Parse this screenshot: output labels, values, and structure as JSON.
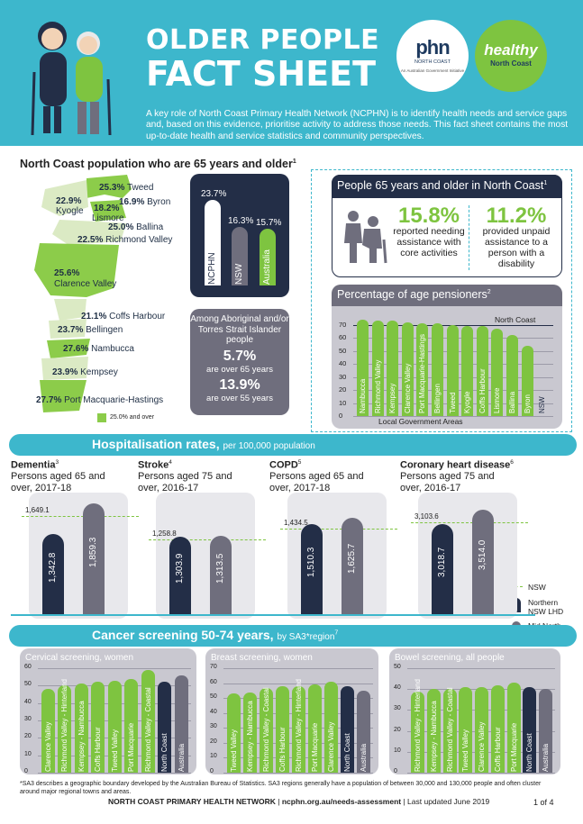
{
  "header": {
    "title_line1": "OLDER PEOPLE",
    "title_line2": "FACT SHEET",
    "intro": "A key role of North Coast Primary Health Network (NCPHN) is to identify health needs and service gaps and, based on this evidence, prioritise activity to address those needs. This fact sheet contains the most up-to-date health and service statistics and community perspectives.",
    "logo_phn": "phn",
    "logo_phn_sub": "NORTH COAST",
    "logo_phn_note": "An Australian Government Initiative",
    "logo_healthy": "healthy",
    "logo_healthy_sub": "North Coast"
  },
  "population": {
    "title": "North Coast population who are 65 years and older",
    "title_sup": "1",
    "regions": [
      {
        "value": "25.3%",
        "name": "Tweed",
        "highlight": true
      },
      {
        "value": "22.9%",
        "name": "Kyogle",
        "highlight": false
      },
      {
        "value": "16.9%",
        "name": "Byron",
        "highlight": false
      },
      {
        "value": "18.2%",
        "name": "Lismore",
        "highlight": false
      },
      {
        "value": "25.0%",
        "name": "Ballina",
        "highlight": true
      },
      {
        "value": "22.5%",
        "name": "Richmond Valley",
        "highlight": false
      },
      {
        "value": "25.6%",
        "name": "Clarence Valley",
        "highlight": true
      },
      {
        "value": "21.1%",
        "name": "Coffs Harbour",
        "highlight": false
      },
      {
        "value": "23.7%",
        "name": "Bellingen",
        "highlight": false
      },
      {
        "value": "27.6%",
        "name": "Nambucca",
        "highlight": true
      },
      {
        "value": "23.9%",
        "name": "Kempsey",
        "highlight": false
      },
      {
        "value": "27.7%",
        "name": "Port Macquarie-Hastings",
        "highlight": true
      }
    ],
    "legend": "25.0% and over",
    "legend_color": "#8ccc4a"
  },
  "comparison": {
    "bars": [
      {
        "label": "NCPHN",
        "value": 23.7,
        "display": "23.7%",
        "color": "#ffffff",
        "label_color": "#232e47"
      },
      {
        "label": "NSW",
        "value": 16.3,
        "display": "16.3%",
        "color": "#6f6e7d",
        "label_color": "#ffffff"
      },
      {
        "label": "Australia",
        "value": 15.7,
        "display": "15.7%",
        "color": "#7ec440",
        "label_color": "#ffffff"
      }
    ]
  },
  "aboriginal": {
    "heading": "Among Aboriginal and/or Torres Strait Islander people",
    "v1": "5.7%",
    "s1": "are over 65 years",
    "v2": "13.9%",
    "s2": "are over 55 years"
  },
  "people65": {
    "title": "People 65 years and older in North Coast",
    "title_sup": "1",
    "stat1_value": "15.8%",
    "stat1_text": "reported needing assistance with core activities",
    "stat2_value": "11.2%",
    "stat2_text": "provided unpaid assistance to a person with a disability"
  },
  "age_pensioners": {
    "title": "Percentage of age pensioners",
    "title_sup": "2",
    "xlabel": "Local Government Areas",
    "reference_label": "North Coast"
  },
  "hospitalisation": {
    "band_title": "Hospitalisation rates,",
    "band_sub": "per 100,000 population",
    "panels": [
      {
        "name": "Dementia",
        "sup": "3",
        "desc": "Persons aged 65 and over, 2017-18"
      },
      {
        "name": "Stroke",
        "sup": "4",
        "desc": "Persons aged 75 and over, 2016-17"
      },
      {
        "name": "COPD",
        "sup": "5",
        "desc": "Persons aged 65 and over, 2017-18"
      },
      {
        "name": "Coronary heart disease",
        "sup": "6",
        "desc": "Persons aged 75 and over, 2016-17"
      }
    ],
    "legend": {
      "nsw": "NSW",
      "nnsw": "Northern NSW LHD",
      "mnc": "Mid North Coast LHD"
    }
  },
  "cancer": {
    "band_title": "Cancer screening 50-74 years,",
    "band_sub": "by SA3*region",
    "band_sup": "7"
  },
  "chart_data": [
    {
      "type": "bar",
      "title": "",
      "categories": [
        "NCPHN",
        "NSW",
        "Australia"
      ],
      "values": [
        23.7,
        16.3,
        15.7
      ],
      "ylim": [
        0,
        25
      ]
    },
    {
      "type": "bar",
      "title": "Percentage of age pensioners",
      "xlabel": "Local Government Areas",
      "categories": [
        "Nambucca",
        "Richmond Valley",
        "Kempsey",
        "Clarence Valley",
        "Port Macquarie-Hastings",
        "Bellingen",
        "Tweed",
        "Kyogle",
        "Coffs Harbour",
        "Lismore",
        "Ballina",
        "Byron",
        "NSW"
      ],
      "values": [
        74,
        73,
        73,
        72,
        71,
        71,
        70,
        69,
        69,
        67,
        62,
        54,
        0
      ],
      "reference": {
        "name": "North Coast",
        "value": 70
      },
      "yticks": [
        0,
        10,
        20,
        30,
        40,
        50,
        60,
        70
      ],
      "ylim": [
        0,
        80
      ]
    },
    {
      "type": "bar",
      "title": "Dementia",
      "categories": [
        "Northern NSW LHD",
        "Mid North Coast LHD"
      ],
      "values": [
        1342.8,
        1859.3
      ],
      "reference": {
        "name": "NSW",
        "value": 1649.1
      },
      "ylim": [
        0,
        2000
      ]
    },
    {
      "type": "bar",
      "title": "Stroke",
      "categories": [
        "Northern NSW LHD",
        "Mid North Coast LHD"
      ],
      "values": [
        1303.9,
        1313.5
      ],
      "reference": {
        "name": "NSW",
        "value": 1258.8
      },
      "ylim": [
        0,
        2000
      ]
    },
    {
      "type": "bar",
      "title": "COPD",
      "categories": [
        "Northern NSW LHD",
        "Mid North Coast LHD"
      ],
      "values": [
        1510.3,
        1625.7
      ],
      "reference": {
        "name": "NSW",
        "value": 1434.5
      },
      "ylim": [
        0,
        2000
      ]
    },
    {
      "type": "bar",
      "title": "Coronary heart disease",
      "categories": [
        "Northern NSW LHD",
        "Mid North Coast LHD"
      ],
      "values": [
        3018.7,
        3514.0
      ],
      "reference": {
        "name": "NSW",
        "value": 3103.6
      },
      "ylim": [
        0,
        4000
      ]
    },
    {
      "type": "bar",
      "title": "Cervical screening, women",
      "categories": [
        "Clarence Valley",
        "Richmond Valley - Hinterland",
        "Kempsey - Nambucca",
        "Coffs Harbour",
        "Tweed Valley",
        "Port Macquarie",
        "Richmond Valley - Coastal",
        "North Coast",
        "Australia"
      ],
      "values": [
        48,
        50,
        51,
        52,
        53,
        54,
        59,
        52,
        56
      ],
      "yticks": [
        0,
        10,
        20,
        30,
        40,
        50,
        60
      ],
      "ylim": [
        0,
        60
      ]
    },
    {
      "type": "bar",
      "title": "Breast screening, women",
      "categories": [
        "Tweed Valley",
        "Kempsey - Nambucca",
        "Richmond Valley - Coastal",
        "Coffs Harbour",
        "Richmond Valley - Hinterland",
        "Port Macquarie",
        "Clarence Valley",
        "North Coast",
        "Australia"
      ],
      "values": [
        53,
        54,
        57,
        58,
        58,
        59,
        61,
        58,
        55
      ],
      "yticks": [
        0,
        10,
        20,
        30,
        40,
        50,
        60,
        70
      ],
      "ylim": [
        0,
        70
      ]
    },
    {
      "type": "bar",
      "title": "Bowel screening, all people",
      "categories": [
        "Richmond Valley - Hinterland",
        "Kempsey - Nambucca",
        "Richmond Valley - Coastal",
        "Tweed Valley",
        "Clarence Valley",
        "Coffs Harbour",
        "Port Macquarie",
        "North Coast",
        "Australia"
      ],
      "values": [
        39,
        40,
        40,
        41,
        41,
        42,
        43,
        41,
        40
      ],
      "yticks": [
        0,
        10,
        20,
        30,
        40,
        50
      ],
      "ylim": [
        0,
        50
      ]
    }
  ],
  "footer": {
    "note": "*SA3 describes a geographic boundary developed by the Australian Bureau of Statistics. SA3 regions generally have a population of between 30,000 and 130,000 people and often cluster around major regional towns and areas.",
    "org": "NORTH COAST PRIMARY HEALTH NETWORK",
    "site": "ncphn.org.au/needs-assessment",
    "updated": "Last updated June 2019",
    "page": "1 of 4"
  }
}
